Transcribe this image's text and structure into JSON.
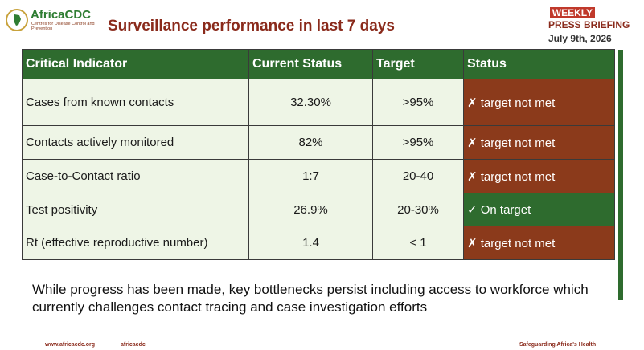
{
  "brand": {
    "name": "AfricaCDC",
    "subtitle": "Centres for Disease Control and Prevention"
  },
  "title": "Surveillance performance in last 7 days",
  "briefing": {
    "weekly": "WEEKLY",
    "press": "PRESS BRIEFING",
    "date": "July 9th, 2026"
  },
  "table": {
    "headers": [
      "Critical Indicator",
      "Current Status",
      "Target",
      "Status"
    ],
    "rows": [
      {
        "indicator": "Cases from known contacts",
        "current": "32.30%",
        "target": ">95%",
        "status": "✗ target not met",
        "ok": false
      },
      {
        "indicator": "Contacts actively monitored",
        "current": "82%",
        "target": ">95%",
        "status": "✗ target not met",
        "ok": false
      },
      {
        "indicator": "Case-to-Contact ratio",
        "current": "1:7",
        "target": "20-40",
        "status": "✗ target not met",
        "ok": false
      },
      {
        "indicator": "Test positivity",
        "current": "26.9%",
        "target": "20-30%",
        "status": "✓ On target",
        "ok": true
      },
      {
        "indicator": "Rt (effective reproductive number)",
        "current": "1.4",
        "target": "< 1",
        "status": "✗ target not met",
        "ok": false
      }
    ]
  },
  "summary": "While progress has been made, key bottlenecks persist including access to workforce which currently challenges contact tracing and case investigation efforts",
  "footer": {
    "url": "www.africacdc.org",
    "social": "africacdc",
    "tagline": "Safeguarding Africa's Health"
  },
  "colors": {
    "green": "#2e6b2e",
    "red_brown": "#8b3a1b",
    "title": "#8a2a1b"
  }
}
